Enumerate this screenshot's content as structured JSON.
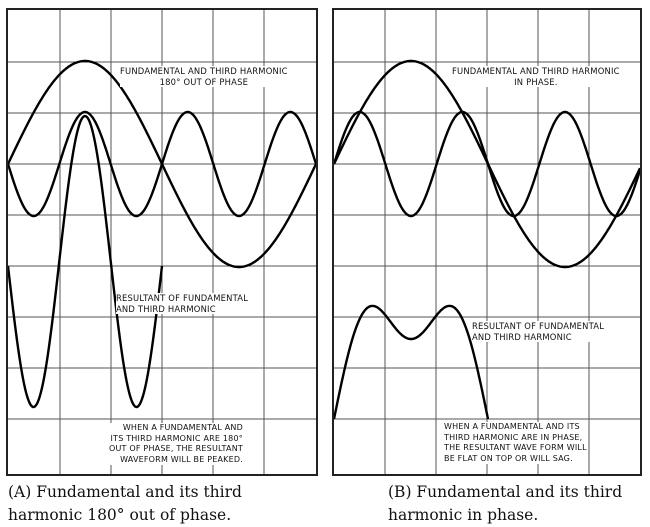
{
  "panel_a": {
    "label_top_line1": "FUNDAMENTAL AND THIRD HARMONIC",
    "label_top_line2": "180° OUT OF PHASE",
    "label_mid_line1": "RESULTANT OF FUNDAMENTAL",
    "label_mid_line2": "AND THIRD HARMONIC",
    "label_bottom_line1": "WHEN A FUNDAMENTAL AND",
    "label_bottom_line2": "ITS THIRD HARMONIC ARE 180°",
    "label_bottom_line3": "OUT OF PHASE, THE RESULTANT",
    "label_bottom_line4": "WAVEFORM WILL BE PEAKED.",
    "caption_line1": "(A) Fundamental and its third",
    "caption_line2": "harmonic 180° out of phase."
  },
  "panel_b": {
    "label_top_line1": "FUNDAMENTAL AND THIRD HARMONIC",
    "label_top_line2": "IN PHASE.",
    "label_mid_line1": "RESULTANT OF FUNDAMENTAL",
    "label_mid_line2": "AND THIRD HARMONIC",
    "label_bottom_line1": "WHEN A FUNDAMENTAL AND ITS",
    "label_bottom_line2": "THIRD HARMONIC ARE IN PHASE,",
    "label_bottom_line3": "THE RESULTANT WAVE FORM WILL",
    "label_bottom_line4": "BE FLAT ON TOP OR WILL SAG.",
    "caption_line1": "(B) Fundamental and its third",
    "caption_line2": "harmonic in phase."
  }
}
